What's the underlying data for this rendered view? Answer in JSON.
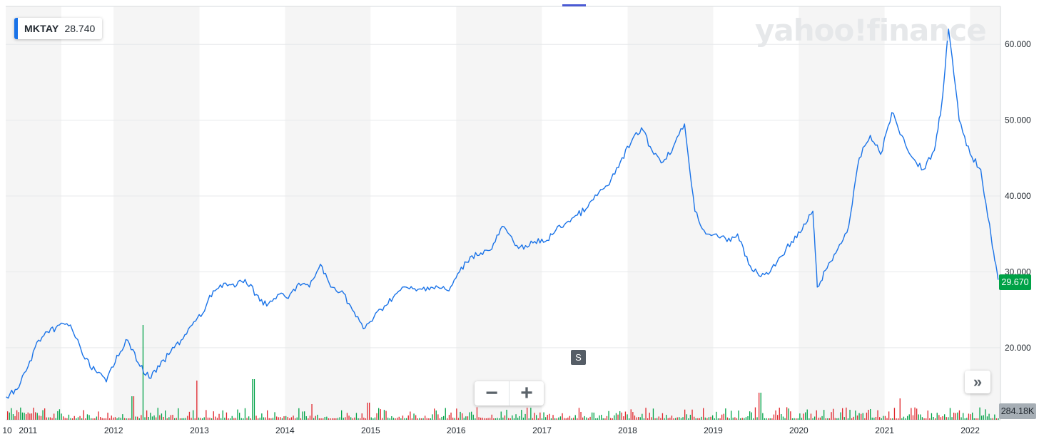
{
  "legend": {
    "symbol": "MKTAY",
    "value": "28.740",
    "color": "#1a73e8"
  },
  "watermark": "yahoo!finance",
  "current_price_label": "29.670",
  "volume_label": "284.18K",
  "splits_marker": "S",
  "zoom": {
    "out_symbol": "−",
    "in_symbol": "+"
  },
  "expand_symbol": "»",
  "colors": {
    "line": "#1a73e8",
    "up_volume": "#00a247",
    "down_volume": "#e0262c",
    "price_tag": "#00a247",
    "band": "#f5f5f5"
  },
  "chart_data": {
    "type": "line",
    "title": "",
    "xlabel": "",
    "ylabel": "",
    "x_axis": {
      "type": "date",
      "range": [
        "2010-10-01",
        "2022-05-01"
      ],
      "tick_labels": [
        "10",
        "2011",
        "2012",
        "2013",
        "2014",
        "2015",
        "2016",
        "2017",
        "2018",
        "2019",
        "2020",
        "2021",
        "2022"
      ]
    },
    "y_axis": {
      "position": "right",
      "range": [
        10.5,
        65
      ],
      "ticks": [
        20.0,
        30.0,
        40.0,
        50.0,
        60.0
      ],
      "tick_labels": [
        "20.000",
        "30.000",
        "40.000",
        "50.000",
        "60.000"
      ]
    },
    "grid": true,
    "alternating_year_bands": true,
    "series": [
      {
        "name": "MKTAY",
        "x": [
          "2010-10-01",
          "2010-11-15",
          "2011-01-01",
          "2011-02-15",
          "2011-04-01",
          "2011-05-15",
          "2011-07-01",
          "2011-09-01",
          "2011-10-15",
          "2011-12-01",
          "2012-01-15",
          "2012-03-01",
          "2012-04-15",
          "2012-06-01",
          "2012-07-15",
          "2012-09-01",
          "2012-10-15",
          "2012-12-01",
          "2013-01-15",
          "2013-03-01",
          "2013-04-15",
          "2013-06-01",
          "2013-07-15",
          "2013-09-01",
          "2013-10-15",
          "2013-12-01",
          "2014-01-15",
          "2014-03-01",
          "2014-04-15",
          "2014-06-01",
          "2014-07-15",
          "2014-09-01",
          "2014-10-15",
          "2014-12-01",
          "2015-01-15",
          "2015-03-01",
          "2015-04-15",
          "2015-06-01",
          "2015-07-15",
          "2015-09-01",
          "2015-10-15",
          "2015-12-01",
          "2016-01-15",
          "2016-03-01",
          "2016-04-15",
          "2016-06-01",
          "2016-07-15",
          "2016-09-01",
          "2016-10-15",
          "2016-12-01",
          "2017-01-15",
          "2017-03-01",
          "2017-04-15",
          "2017-06-01",
          "2017-07-15",
          "2017-09-01",
          "2017-10-15",
          "2017-12-01",
          "2018-01-15",
          "2018-03-01",
          "2018-04-15",
          "2018-06-01",
          "2018-07-15",
          "2018-09-01",
          "2018-10-15",
          "2018-12-01",
          "2019-01-15",
          "2019-03-01",
          "2019-04-15",
          "2019-06-01",
          "2019-07-15",
          "2019-09-01",
          "2019-10-15",
          "2019-12-01",
          "2020-01-15",
          "2020-03-01",
          "2020-03-20",
          "2020-05-01",
          "2020-06-15",
          "2020-08-01",
          "2020-09-15",
          "2020-11-01",
          "2020-12-15",
          "2021-02-01",
          "2021-03-15",
          "2021-05-01",
          "2021-06-15",
          "2021-08-01",
          "2021-09-01",
          "2021-10-01",
          "2021-11-15",
          "2022-01-01",
          "2022-02-15",
          "2022-04-01",
          "2022-04-30"
        ],
        "values": [
          13.5,
          14.5,
          17.5,
          21,
          22,
          23,
          23,
          18.5,
          17,
          15.5,
          19,
          21,
          18,
          16,
          17.5,
          19.5,
          21,
          23,
          24.5,
          27.5,
          28.5,
          28,
          29,
          27,
          25.5,
          27,
          26.5,
          28.5,
          28,
          31,
          28,
          27.5,
          25,
          22.5,
          24,
          25.5,
          27,
          28,
          27.5,
          28,
          28,
          27.5,
          30,
          32,
          32.5,
          33,
          36,
          34,
          33,
          34,
          34,
          35.5,
          36.5,
          37.5,
          38.5,
          40.5,
          41.5,
          44.5,
          47,
          49,
          46,
          44.5,
          46.5,
          49.5,
          38,
          35,
          35,
          34,
          35,
          31,
          29.5,
          30,
          32,
          34,
          35.5,
          38,
          28,
          30.5,
          33,
          36,
          45,
          48,
          45.5,
          51,
          48,
          45,
          43.5,
          46,
          52,
          62,
          50,
          45.5,
          43.5,
          34.5,
          29
        ]
      }
    ]
  }
}
